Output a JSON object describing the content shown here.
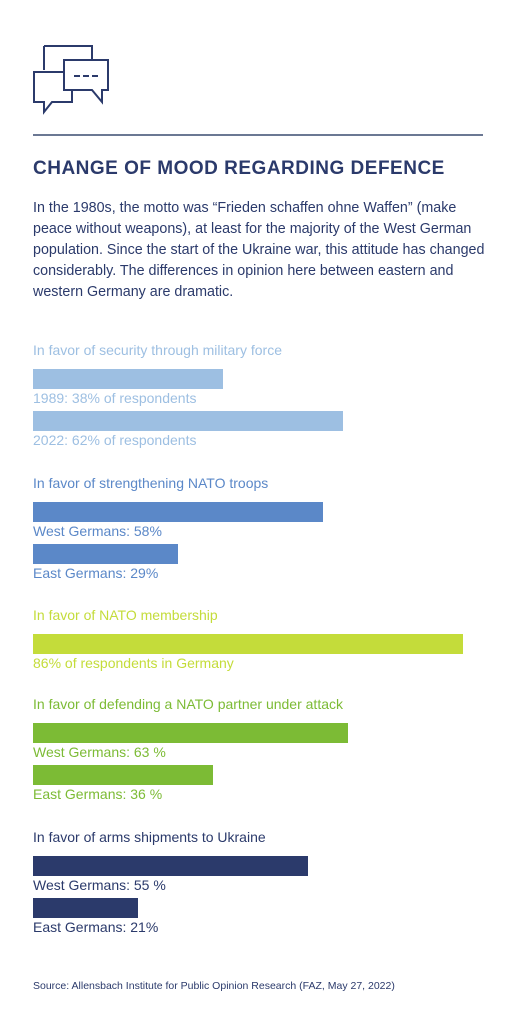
{
  "header": {
    "icon": "speech-bubbles-icon",
    "title": "CHANGE OF MOOD REGARDING DEFENCE",
    "intro": "In the 1980s, the motto was “Frieden schaffen ohne Waffen” (make peace without weapons), at least for the majority of the West German population. Since the start of the Ukraine war, this attitude has changed considerably. The differences in opinion here between eastern and western Germany are dramatic."
  },
  "chart_data": {
    "type": "bar",
    "orientation": "horizontal",
    "unit": "% of respondents",
    "xlim": [
      0,
      100
    ],
    "groups": [
      {
        "title": "In favor of security through military force",
        "color": "#9dbfe2",
        "bars": [
          {
            "label": "1989: 38% of respondents",
            "value": 38
          },
          {
            "label": "2022: 62% of respondents",
            "value": 62
          }
        ]
      },
      {
        "title": "In favor of strengthening NATO troops",
        "color": "#5b88c8",
        "bars": [
          {
            "label": "West Germans: 58%",
            "value": 58
          },
          {
            "label": "East Germans: 29%",
            "value": 29
          }
        ]
      },
      {
        "title": "In favor of NATO membership",
        "color": "#c4dc3a",
        "bars": [
          {
            "label": "86% of respondents in Germany",
            "value": 86
          }
        ]
      },
      {
        "title": "In favor of defending a NATO partner under attack",
        "color": "#7cbb35",
        "bars": [
          {
            "label": "West Germans: 63 %",
            "value": 63
          },
          {
            "label": "East Germans: 36 %",
            "value": 36
          }
        ]
      },
      {
        "title": "In favor of arms shipments to Ukraine",
        "color": "#2b3a6b",
        "bars": [
          {
            "label": "West Germans: 55 %",
            "value": 55
          },
          {
            "label": "East Germans: 21%",
            "value": 21
          }
        ]
      }
    ]
  },
  "footer": {
    "source": "Source: Allensbach Institute for Public Opinion Research (FAZ, May 27, 2022)"
  }
}
